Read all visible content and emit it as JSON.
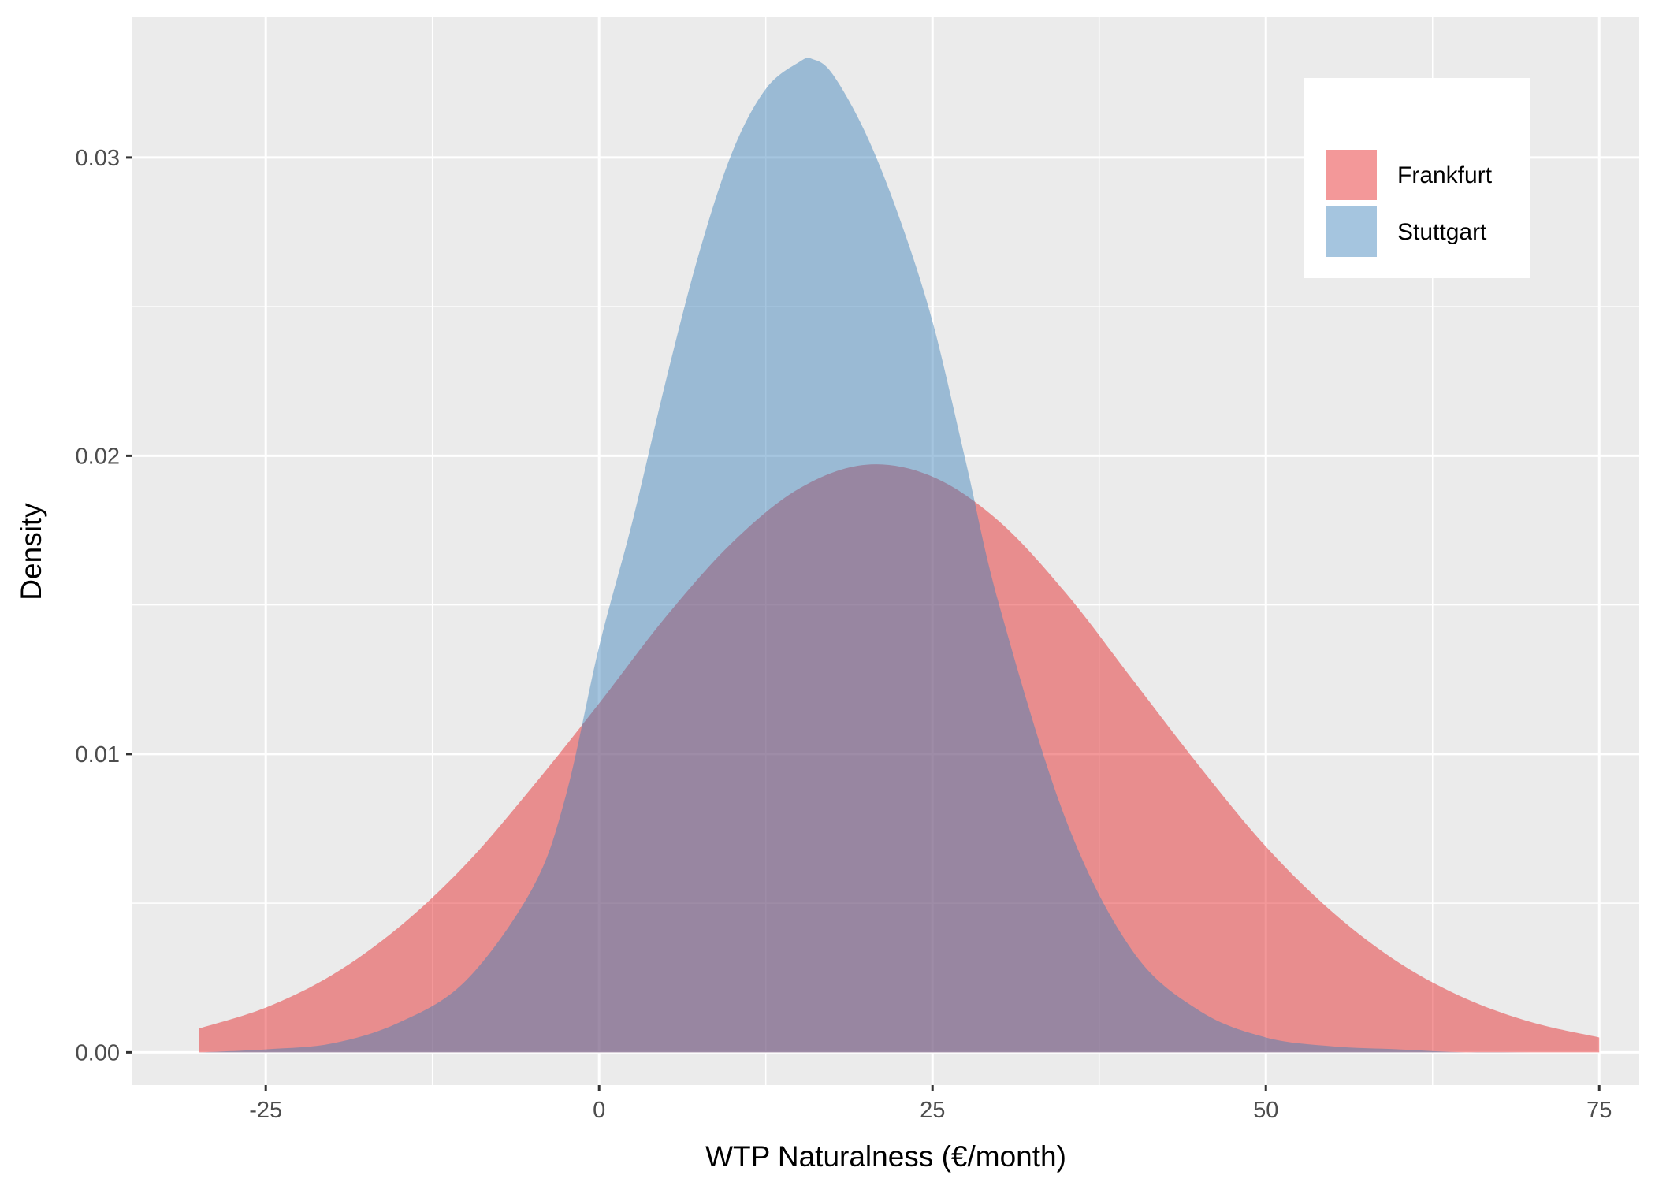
{
  "chart_data": {
    "type": "area",
    "title": "",
    "xlabel": "WTP Naturalness (€/month)",
    "ylabel": "Density",
    "xlim": [
      -35,
      78
    ],
    "ylim": [
      -0.0011,
      0.0347
    ],
    "x_ticks": [
      -25,
      0,
      25,
      50,
      75
    ],
    "x_tick_labels": [
      "-25",
      "0",
      "25",
      "50",
      "75"
    ],
    "y_ticks": [
      0,
      0.01,
      0.02,
      0.03
    ],
    "y_tick_labels": [
      "0.00",
      "0.01",
      "0.02",
      "0.03"
    ],
    "x_minor_ticks": [
      -12.5,
      12.5,
      37.5,
      62.5
    ],
    "y_minor_ticks": [
      0.005,
      0.015,
      0.025
    ],
    "grid": true,
    "legend_position": "top-right",
    "series": [
      {
        "name": "Frankfurt",
        "color": "#E41A1C",
        "fill_opacity": 0.45,
        "x": [
          -30,
          -25,
          -20,
          -15,
          -10,
          -5,
          0,
          5,
          10,
          15,
          20,
          25,
          30,
          35,
          40,
          45,
          50,
          55,
          60,
          65,
          70,
          75
        ],
        "y": [
          0.0008,
          0.0015,
          0.0026,
          0.0042,
          0.0063,
          0.0089,
          0.0117,
          0.0146,
          0.0171,
          0.0189,
          0.0197,
          0.0193,
          0.0178,
          0.0154,
          0.0125,
          0.0096,
          0.0069,
          0.0047,
          0.003,
          0.0018,
          0.001,
          0.0005
        ]
      },
      {
        "name": "Stuttgart",
        "color": "#377EB8",
        "fill_opacity": 0.45,
        "x": [
          -30,
          -25,
          -20,
          -15,
          -10,
          -5,
          -2.5,
          0,
          2.5,
          5,
          7.5,
          10,
          12.5,
          15,
          16,
          17.5,
          20,
          22.5,
          25,
          27.5,
          30,
          35,
          40,
          45,
          50,
          55,
          60,
          65,
          70,
          75
        ],
        "y": [
          0.0,
          0.0001,
          0.0003,
          0.001,
          0.0024,
          0.0055,
          0.0086,
          0.0136,
          0.0178,
          0.0225,
          0.0268,
          0.0302,
          0.0323,
          0.0332,
          0.0333,
          0.0328,
          0.0308,
          0.028,
          0.0245,
          0.0198,
          0.015,
          0.0078,
          0.0034,
          0.0014,
          0.0005,
          0.0002,
          0.0001,
          0.0,
          0.0,
          0.0
        ]
      }
    ]
  }
}
